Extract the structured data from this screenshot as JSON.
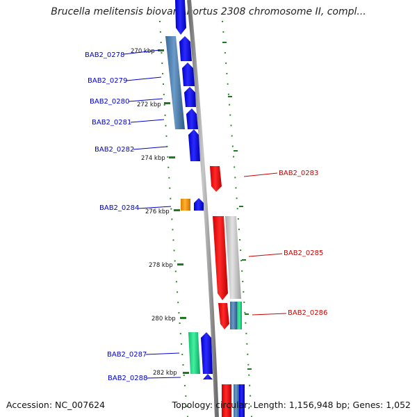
{
  "title": "Brucella melitensis biovar Abortus 2308 chromosome II, compl...",
  "footer": {
    "accession": "Accession: NC_007624",
    "topology": "Topology: circular; Length: 1,156,948 bp; Genes: 1,052"
  },
  "scale_labels": [
    "270 kbp",
    "272 kbp",
    "274 kbp",
    "276 kbp",
    "278 kbp",
    "280 kbp",
    "282 kbp"
  ],
  "gene_labels_left": [
    "BAB2_0278",
    "BAB2_0279",
    "BAB2_0280",
    "BAB2_0281",
    "BAB2_0282",
    "BAB2_0284",
    "BAB2_0287",
    "BAB2_0288"
  ],
  "gene_labels_right": [
    "BAB2_0283",
    "BAB2_0285",
    "BAB2_0286"
  ],
  "colors": {
    "forward_gene": "#0000ee",
    "reverse_gene": "#ee0000",
    "operon_blue": "#4a7fb0",
    "orange_feature": "#ff9900",
    "green_feature": "#22dd88",
    "grey_feature": "#c0c0c0",
    "backbone": "#8a8a8a",
    "scale_tick": "#2a7a2a"
  }
}
